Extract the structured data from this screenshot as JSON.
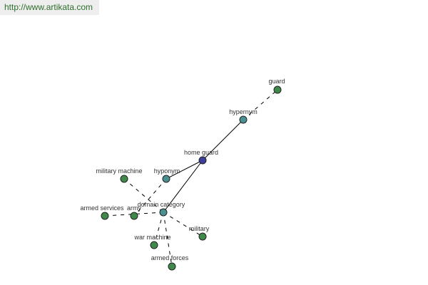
{
  "header": {
    "url": "http://www.artikata.com"
  },
  "nodes": [
    {
      "label": "home guard"
    },
    {
      "label": "hypernym"
    },
    {
      "label": "guard"
    },
    {
      "label": "hyponym"
    },
    {
      "label": "domain category"
    },
    {
      "label": "military machine"
    },
    {
      "label": "armed services"
    },
    {
      "label": "army"
    },
    {
      "label": "war machine"
    },
    {
      "label": "military"
    },
    {
      "label": "armed forces"
    }
  ]
}
